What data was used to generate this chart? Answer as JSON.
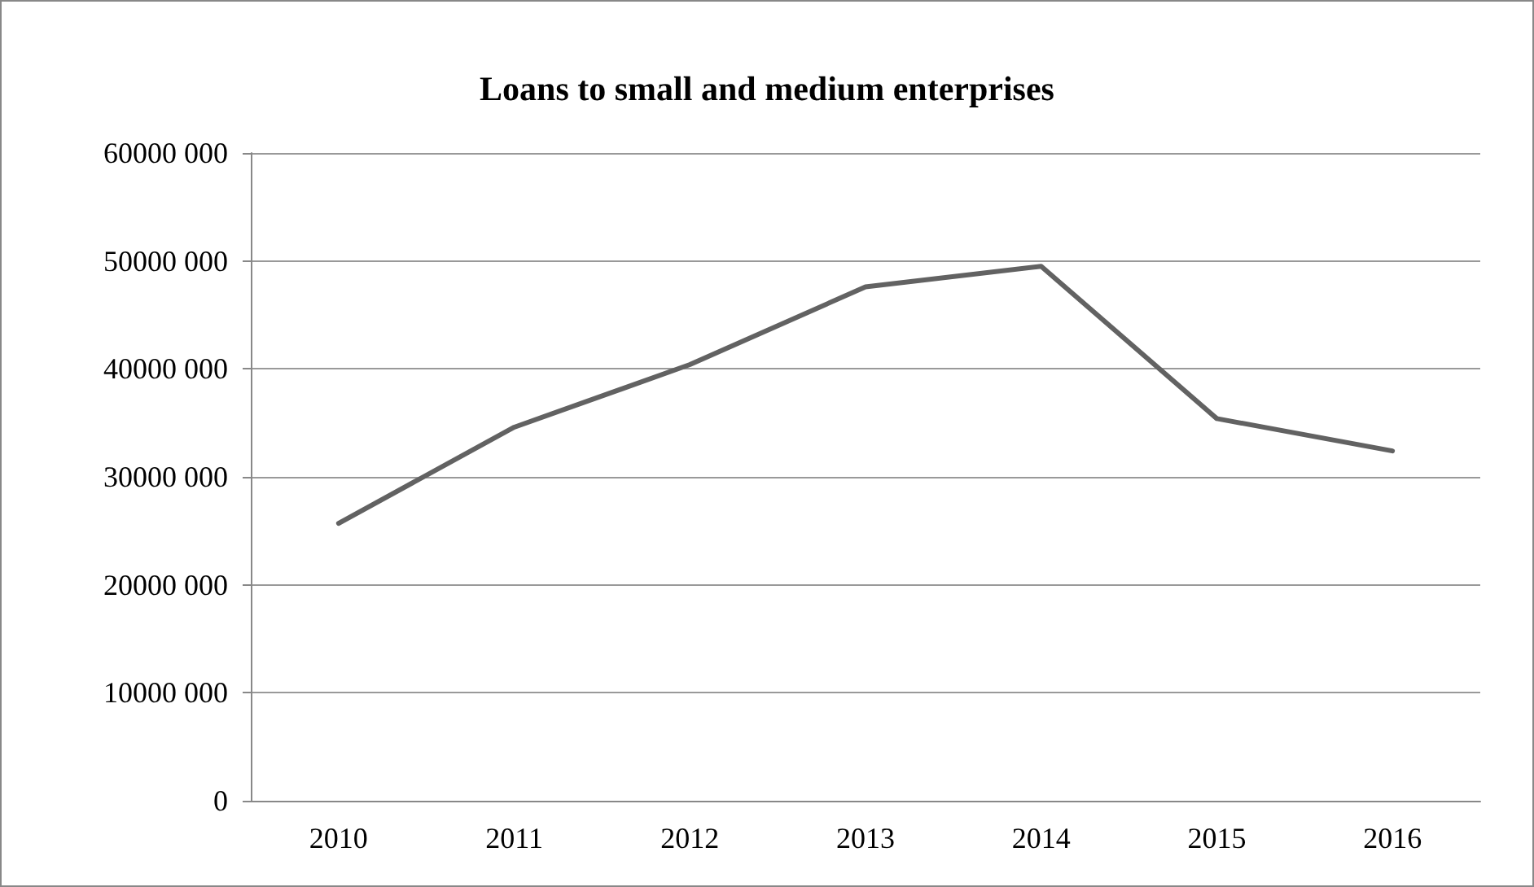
{
  "chart_data": {
    "type": "line",
    "title": "Loans to small and medium enterprises",
    "categories": [
      "2010",
      "2011",
      "2012",
      "2013",
      "2014",
      "2015",
      "2016"
    ],
    "series": [
      {
        "color": "#626262",
        "values": [
          25700000,
          34600000,
          40400000,
          47600000,
          49500000,
          35400000,
          32400000
        ]
      }
    ],
    "ylim": [
      0,
      60000000
    ],
    "yticks": [
      {
        "value": 0,
        "label": "0"
      },
      {
        "value": 10000000,
        "label": "10000 000"
      },
      {
        "value": 20000000,
        "label": "20000 000"
      },
      {
        "value": 30000000,
        "label": "30000 000"
      },
      {
        "value": 40000000,
        "label": "40000 000"
      },
      {
        "value": 50000000,
        "label": "50000 000"
      },
      {
        "value": 60000000,
        "label": "60000 000"
      }
    ],
    "grid": "y",
    "marker": "none",
    "line_style": "solid"
  }
}
